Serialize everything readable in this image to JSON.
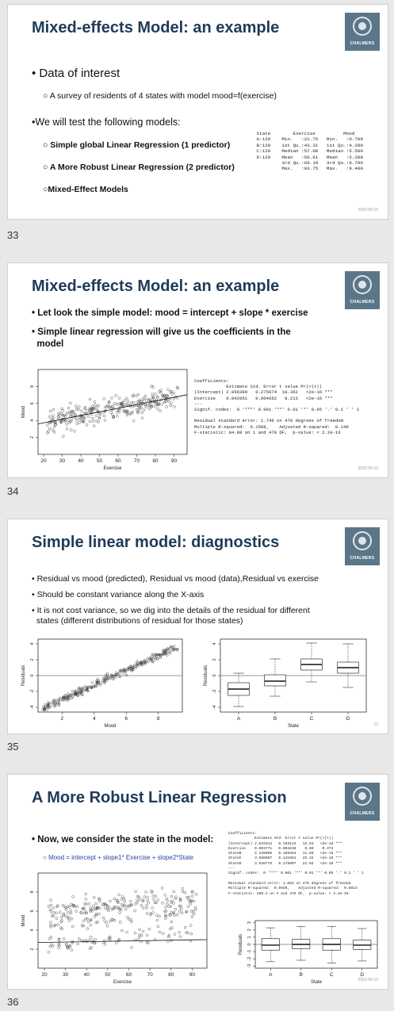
{
  "slides": [
    {
      "number": "33",
      "title": "Mixed-effects Model: an example",
      "bullet1": "Data of interest",
      "sub1": "A survey of residents of 4 states with model mood=f(exercise)",
      "bullet2": "We will test the following models:",
      "models": [
        "Simple global Linear Regression (1 predictor)",
        "A More Robust Linear Regression (2 predictor)",
        "Mixed-Effect Models"
      ],
      "summary": " State        Exercise          Mood\n A:120    Min.   :21.75   Min.   :0.700\n B:120    1st Qu.:43.31   1st Qu.:4.200\n C:120    Median :57.00   Median :5.500\n D:120    Mean   :56.61   Mean   :5.288\n          3rd Qu.:69.19   3rd Qu.:6.700\n          Max.   :93.75   Max.   :9.400",
      "date": "2022-05-10"
    },
    {
      "number": "34",
      "title": "Mixed-effects Model: an example",
      "bullet1": "Let look the simple model: mood = intercept + slope * exercise",
      "bullet2a": "Simple linear regression will give us the coefficients in the",
      "bullet2b": "model",
      "coef": "Coefficients:\n            Estimate Std. Error t value Pr(>|t|)\n(Intercept) 2.856399   0.275674  10.362   <2e-16 ***\nExercise    0.042951   0.004662   9.213   <2e-16 ***\n---\nSignif. codes:  0 '***' 0.001 '**' 0.01 '*' 0.05 '.' 0.1 ' ' 1\n\nResidual standard error: 1.746 on 478 degrees of freedom\nMultiple R-squared:  0.1508,    Adjusted R-squared:  0.149\nF-statistic: 84.88 on 1 and 478 DF,  p-value: < 2.2e-16",
      "date": "2022-05-10"
    },
    {
      "number": "35",
      "title": "Simple linear model: diagnostics",
      "bullets": [
        "Residual vs mood (predicted), Residual vs mood (data),Residual vs exercise",
        "Should be constant variance along the X-axis",
        "It is not cost variance, so we dig into the details of the residual for different",
        "states (different distributions of residual for those states)"
      ],
      "page": "12"
    },
    {
      "number": "36",
      "title": "A More Robust Linear Regression",
      "bullet1": "Now, we consider the state in the model:",
      "formula": "Mood = intercept + slope1* Exercise + slope2*State",
      "coef": "Coefficients:\n            Estimate Std. Error t value Pr(>|t|)\n(Intercept) 2.633314   0.193123   13.63   <2e-16 ***\nExercise    0.003771   0.004238    0.89    0.374\nStateB      2.236506   0.189464   11.80   <2e-16 ***\nStateC      3.588067   0.141681   25.32   <2e-16 ***\nStateD      3.938775   0.178897   22.02   <2e-16 ***\n---\nSignif. codes:  0 '***' 0.001 '**' 0.01 '*' 0.05 '.' 0.1 ' ' 1\n\nResidual standard error: 1.052 on 475 degrees of freedom\nMultiple R-squared:  0.6939,    Adjusted R-squared:  0.6913\nF-statistic: 269.2 on 4 and 475 DF,  p-value: < 2.2e-16",
      "date": "2022-05-10"
    }
  ],
  "logo_text": "CHALMERS",
  "plots": {
    "s34_scatter": {
      "xlabel": "Exercise",
      "ylabel": "Mood",
      "xticks": [
        "20",
        "30",
        "40",
        "50",
        "60",
        "70",
        "80",
        "90"
      ],
      "yticks": [
        "2",
        "4",
        "6",
        "8"
      ],
      "intercept": 2.856,
      "slope": 0.043
    },
    "s35_scatter": {
      "xlabel": "Mood",
      "ylabel": "Residuals",
      "xticks": [
        "2",
        "4",
        "6",
        "8"
      ],
      "yticks": [
        "-4",
        "-2",
        "0",
        "2",
        "4"
      ]
    },
    "s35_box": {
      "xlabel": "State",
      "ylabel": "Residuals",
      "categories": [
        "A",
        "B",
        "C",
        "D"
      ],
      "yticks": [
        "-4",
        "-2",
        "0",
        "2",
        "4"
      ],
      "boxes": [
        {
          "min": -3.9,
          "q1": -2.5,
          "med": -1.7,
          "q3": -0.9,
          "max": 0.3
        },
        {
          "min": -2.6,
          "q1": -1.3,
          "med": -0.7,
          "q3": 0.1,
          "max": 2.1
        },
        {
          "min": -0.8,
          "q1": 0.7,
          "med": 1.4,
          "q3": 2.1,
          "max": 4.1
        },
        {
          "min": -1.5,
          "q1": 0.3,
          "med": 1.0,
          "q3": 1.7,
          "max": 4.0
        }
      ]
    },
    "s36_scatter": {
      "xlabel": "Exercise",
      "ylabel": "Mood",
      "xticks": [
        "20",
        "30",
        "40",
        "50",
        "60",
        "70",
        "80",
        "90"
      ],
      "yticks": [
        "2",
        "4",
        "6",
        "8"
      ],
      "intercept": 2.633,
      "slope": 0.0038
    },
    "s36_box": {
      "xlabel": "State",
      "ylabel": "Residuals",
      "categories": [
        "A",
        "B",
        "C",
        "D"
      ],
      "yticks": [
        "-3",
        "-2",
        "-1",
        "0",
        "1",
        "2",
        "3"
      ],
      "boxes": [
        {
          "min": -2.4,
          "q1": -0.8,
          "med": -0.1,
          "q3": 0.8,
          "max": 2.3
        },
        {
          "min": -2.2,
          "q1": -0.6,
          "med": 0.0,
          "q3": 0.7,
          "max": 2.5
        },
        {
          "min": -2.6,
          "q1": -0.8,
          "med": 0.0,
          "q3": 0.8,
          "max": 2.5
        },
        {
          "min": -2.3,
          "q1": -0.7,
          "med": -0.1,
          "q3": 0.6,
          "max": 2.2
        }
      ]
    }
  }
}
